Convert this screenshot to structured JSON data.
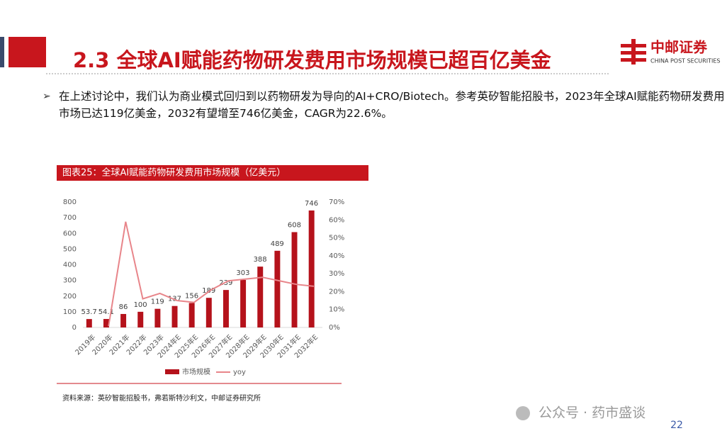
{
  "header": {
    "title": "2.3 全球AI赋能药物研发费用市场规模已超百亿美金",
    "logo_cn": "中邮证券",
    "logo_en": "CHINA POST SECURITIES"
  },
  "bullet": "在上述讨论中，我们认为商业模式回归到以药物研发为导向的AI+CRO/Biotech。参考英矽智能招股书，2023年全球AI赋能药物研发费用市场已达119亿美金，2032有望增至746亿美金，CAGR为22.6%。",
  "chart_data": {
    "type": "bar",
    "title": "图表25：全球AI赋能药物研发费用市场规模（亿美元）",
    "categories": [
      "2019年",
      "2020年",
      "2021年",
      "2022年",
      "2023年",
      "2024年E",
      "2025年E",
      "2026年E",
      "2027年E",
      "2028年E",
      "2029年E",
      "2030年E",
      "2031年E",
      "2032年E"
    ],
    "series": [
      {
        "name": "市场规模",
        "color": "#b5121b",
        "values": [
          53.7,
          54.1,
          86,
          100,
          119,
          137,
          156,
          189,
          239,
          303,
          388,
          489,
          608,
          746
        ]
      },
      {
        "name": "yoy",
        "type": "line",
        "color": "#e8858a",
        "axis": "y2",
        "values": [
          null,
          0.7,
          59,
          16,
          19,
          15,
          14,
          21,
          26,
          27,
          28,
          26,
          24,
          23
        ]
      }
    ],
    "ylim": [
      0,
      800
    ],
    "yticks": [
      0,
      100,
      200,
      300,
      400,
      500,
      600,
      700,
      800
    ],
    "y2lim": [
      0,
      70
    ],
    "y2ticks": [
      {
        "value": 0,
        "label": "0%"
      },
      {
        "value": 10,
        "label": "10%"
      },
      {
        "value": 20,
        "label": "20%"
      },
      {
        "value": 30,
        "label": "30%"
      },
      {
        "value": 40,
        "label": "40%"
      },
      {
        "value": 50,
        "label": "50%"
      },
      {
        "value": 60,
        "label": "60%"
      },
      {
        "value": 70,
        "label": "70%"
      }
    ],
    "legend": "bottom",
    "source": "资料来源：英矽智能招股书，弗若斯特沙利文，中邮证券研究所"
  },
  "footer": {
    "watermark": "公众号 · 药市盛谈",
    "page": "22"
  }
}
